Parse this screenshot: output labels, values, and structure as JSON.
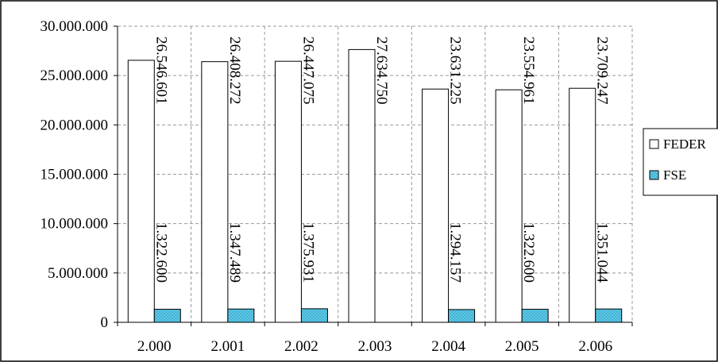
{
  "chart_data": {
    "type": "bar",
    "title": "",
    "xlabel": "",
    "ylabel": "",
    "categories": [
      "2.000",
      "2.001",
      "2.002",
      "2.003",
      "2.004",
      "2.005",
      "2.006"
    ],
    "series": [
      {
        "name": "FEDER",
        "values": [
          26546601,
          26408272,
          26447075,
          27634750,
          23631225,
          23554961,
          23709247
        ],
        "labels": [
          "26.546.601",
          "26.408.272",
          "26.447.075",
          "27.634.750",
          "23.631.225",
          "23.554.961",
          "23.709.247"
        ],
        "color": "#ffffff"
      },
      {
        "name": "FSE",
        "values": [
          1322600,
          1347489,
          1375931,
          null,
          1294157,
          1322600,
          1351044
        ],
        "labels": [
          "1.322.600",
          "1.347.489",
          "1.375.931",
          "",
          "1.294.157",
          "1.322.600",
          "1.351.044"
        ],
        "color": "#5bc8e8"
      }
    ],
    "ylim": [
      0,
      30000000
    ],
    "yticks": [
      0,
      5000000,
      10000000,
      15000000,
      20000000,
      25000000,
      30000000
    ],
    "ytick_labels": [
      "0",
      "5.000.000",
      "10.000.000",
      "15.000.000",
      "20.000.000",
      "25.000.000",
      "30.000.000"
    ],
    "grid": true,
    "legend_position": "right"
  }
}
